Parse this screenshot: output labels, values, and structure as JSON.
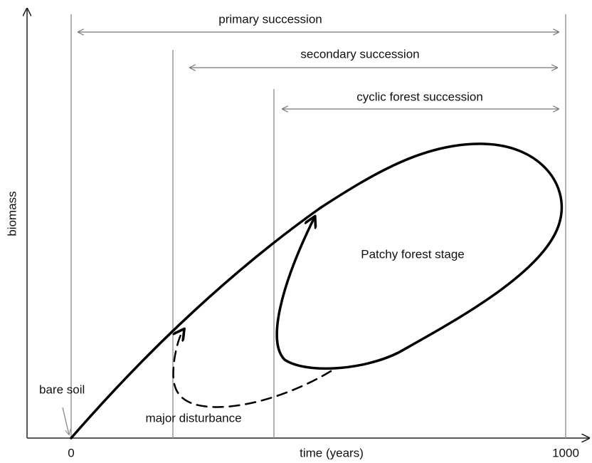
{
  "ranges": [
    "primary succession",
    "secondary succession",
    "cyclic forest succession"
  ],
  "annotations": [
    "Patchy forest stage",
    "bare soil",
    "major disturbance"
  ],
  "axes": {
    "y_label": "biomass",
    "x_label": "time (years)",
    "x_ticks": [
      "0",
      "1000"
    ]
  }
}
